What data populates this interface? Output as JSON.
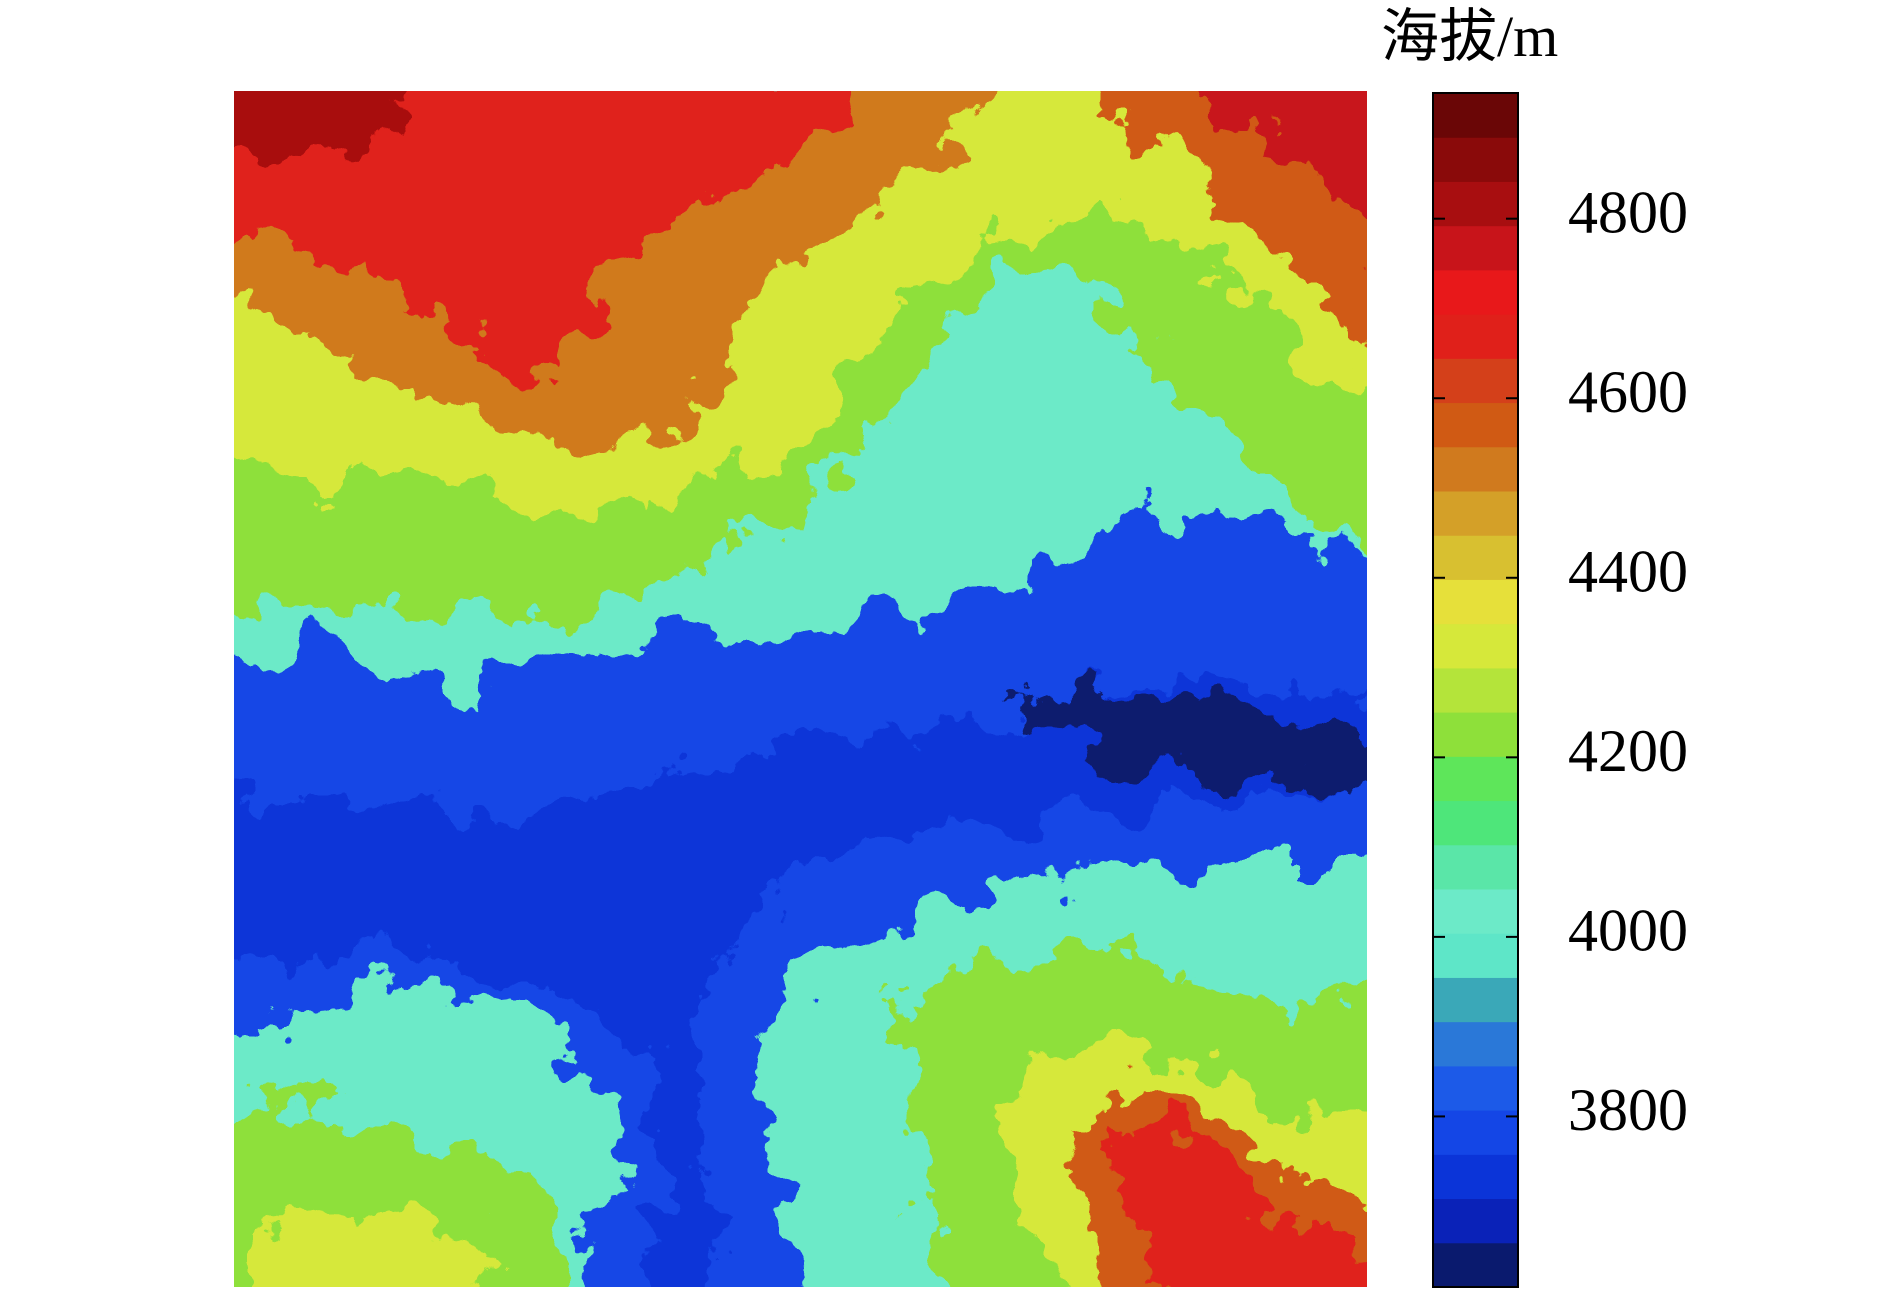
{
  "chart_data": {
    "type": "heatmap",
    "colorbar_label": "海拔/m",
    "clim": [
      3610,
      4940
    ],
    "cticks": [
      3800,
      4000,
      4200,
      4400,
      4600,
      4800
    ],
    "colormap": [
      "#0a1a6e",
      "#0a22b8",
      "#0b34d8",
      "#1446e6",
      "#1c5ae8",
      "#2a78d8",
      "#3aa8b8",
      "#5ee6c8",
      "#6ceac8",
      "#5ae6a8",
      "#4ee67a",
      "#5ee65a",
      "#8ee03a",
      "#b4e43a",
      "#d6e83a",
      "#e6e03a",
      "#d8c030",
      "#d4a028",
      "#d07a1e",
      "#d05a14",
      "#d4401a",
      "#e0201a",
      "#e8181a",
      "#c8141a",
      "#a80e10",
      "#8a0a0a",
      "#6a0606"
    ]
  }
}
